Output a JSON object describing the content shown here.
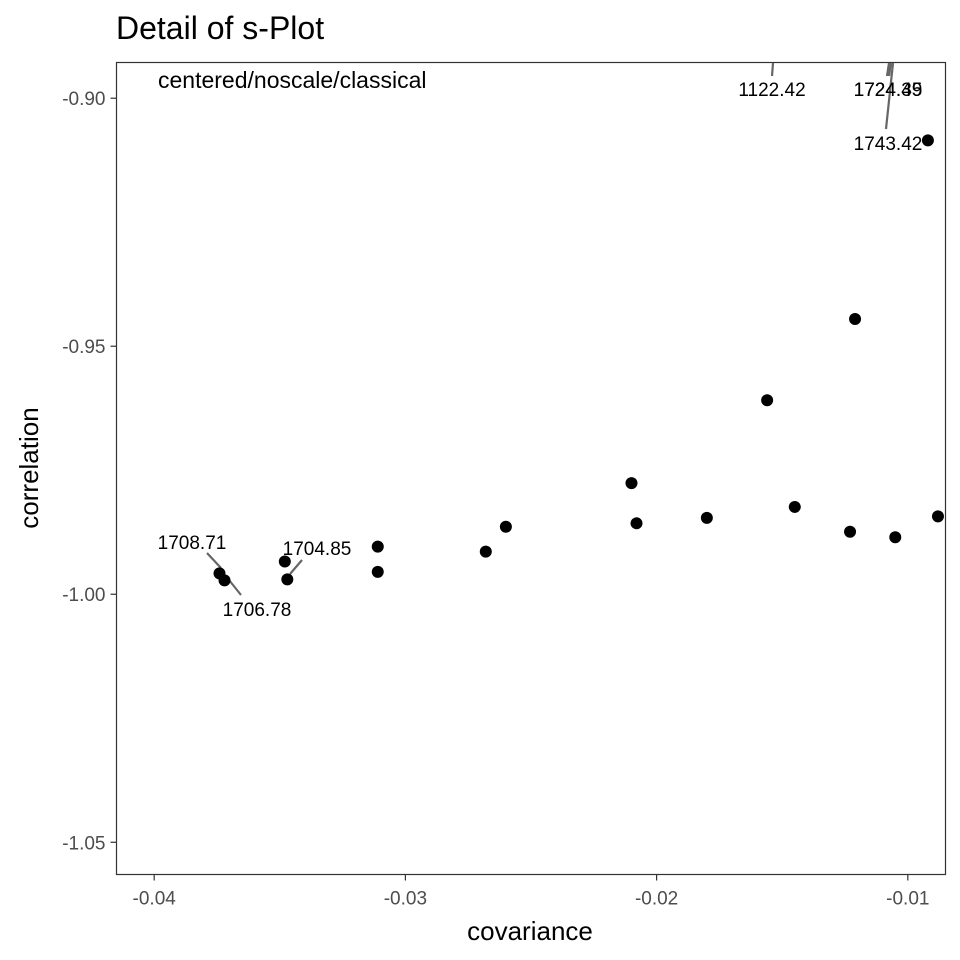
{
  "chart_data": {
    "type": "scatter",
    "title": "Detail of s-Plot",
    "xlabel": "covariance",
    "ylabel": "correlation",
    "annotation": "centered/noscale/classical",
    "xlim": [
      -0.0415,
      -0.0085
    ],
    "ylim": [
      -1.0565,
      -0.8928
    ],
    "x_ticks": [
      -0.04,
      -0.03,
      -0.02,
      -0.01
    ],
    "x_tick_labels": [
      "-0.04",
      "-0.03",
      "-0.02",
      "-0.01"
    ],
    "y_ticks": [
      -0.9,
      -0.95,
      -1.0,
      -1.05
    ],
    "y_tick_labels": [
      "-0.90",
      "-0.95",
      "-1.00",
      "-1.05"
    ],
    "grid": false,
    "points": [
      {
        "x": -0.0374,
        "y": -0.9958
      },
      {
        "x": -0.0372,
        "y": -0.9972
      },
      {
        "x": -0.0348,
        "y": -0.9934
      },
      {
        "x": -0.0347,
        "y": -0.997
      },
      {
        "x": -0.0311,
        "y": -0.9904
      },
      {
        "x": -0.0311,
        "y": -0.9955
      },
      {
        "x": -0.0268,
        "y": -0.9914
      },
      {
        "x": -0.026,
        "y": -0.9864
      },
      {
        "x": -0.021,
        "y": -0.9776
      },
      {
        "x": -0.0208,
        "y": -0.9857
      },
      {
        "x": -0.018,
        "y": -0.9846
      },
      {
        "x": -0.0156,
        "y": -0.9609
      },
      {
        "x": -0.0145,
        "y": -0.9824
      },
      {
        "x": -0.0123,
        "y": -0.9874
      },
      {
        "x": -0.0121,
        "y": -0.9445
      },
      {
        "x": -0.0105,
        "y": -0.9885
      },
      {
        "x": -0.0092,
        "y": -0.9085
      },
      {
        "x": -0.0088,
        "y": -0.9843
      }
    ],
    "point_labels": [
      {
        "text": "1708.71"
      },
      {
        "text": "1706.78"
      },
      {
        "text": "1704.85"
      },
      {
        "text": "1122.42"
      },
      {
        "text": "1724.35"
      },
      {
        "text": "1724.49"
      },
      {
        "text": "1743.42"
      }
    ]
  }
}
